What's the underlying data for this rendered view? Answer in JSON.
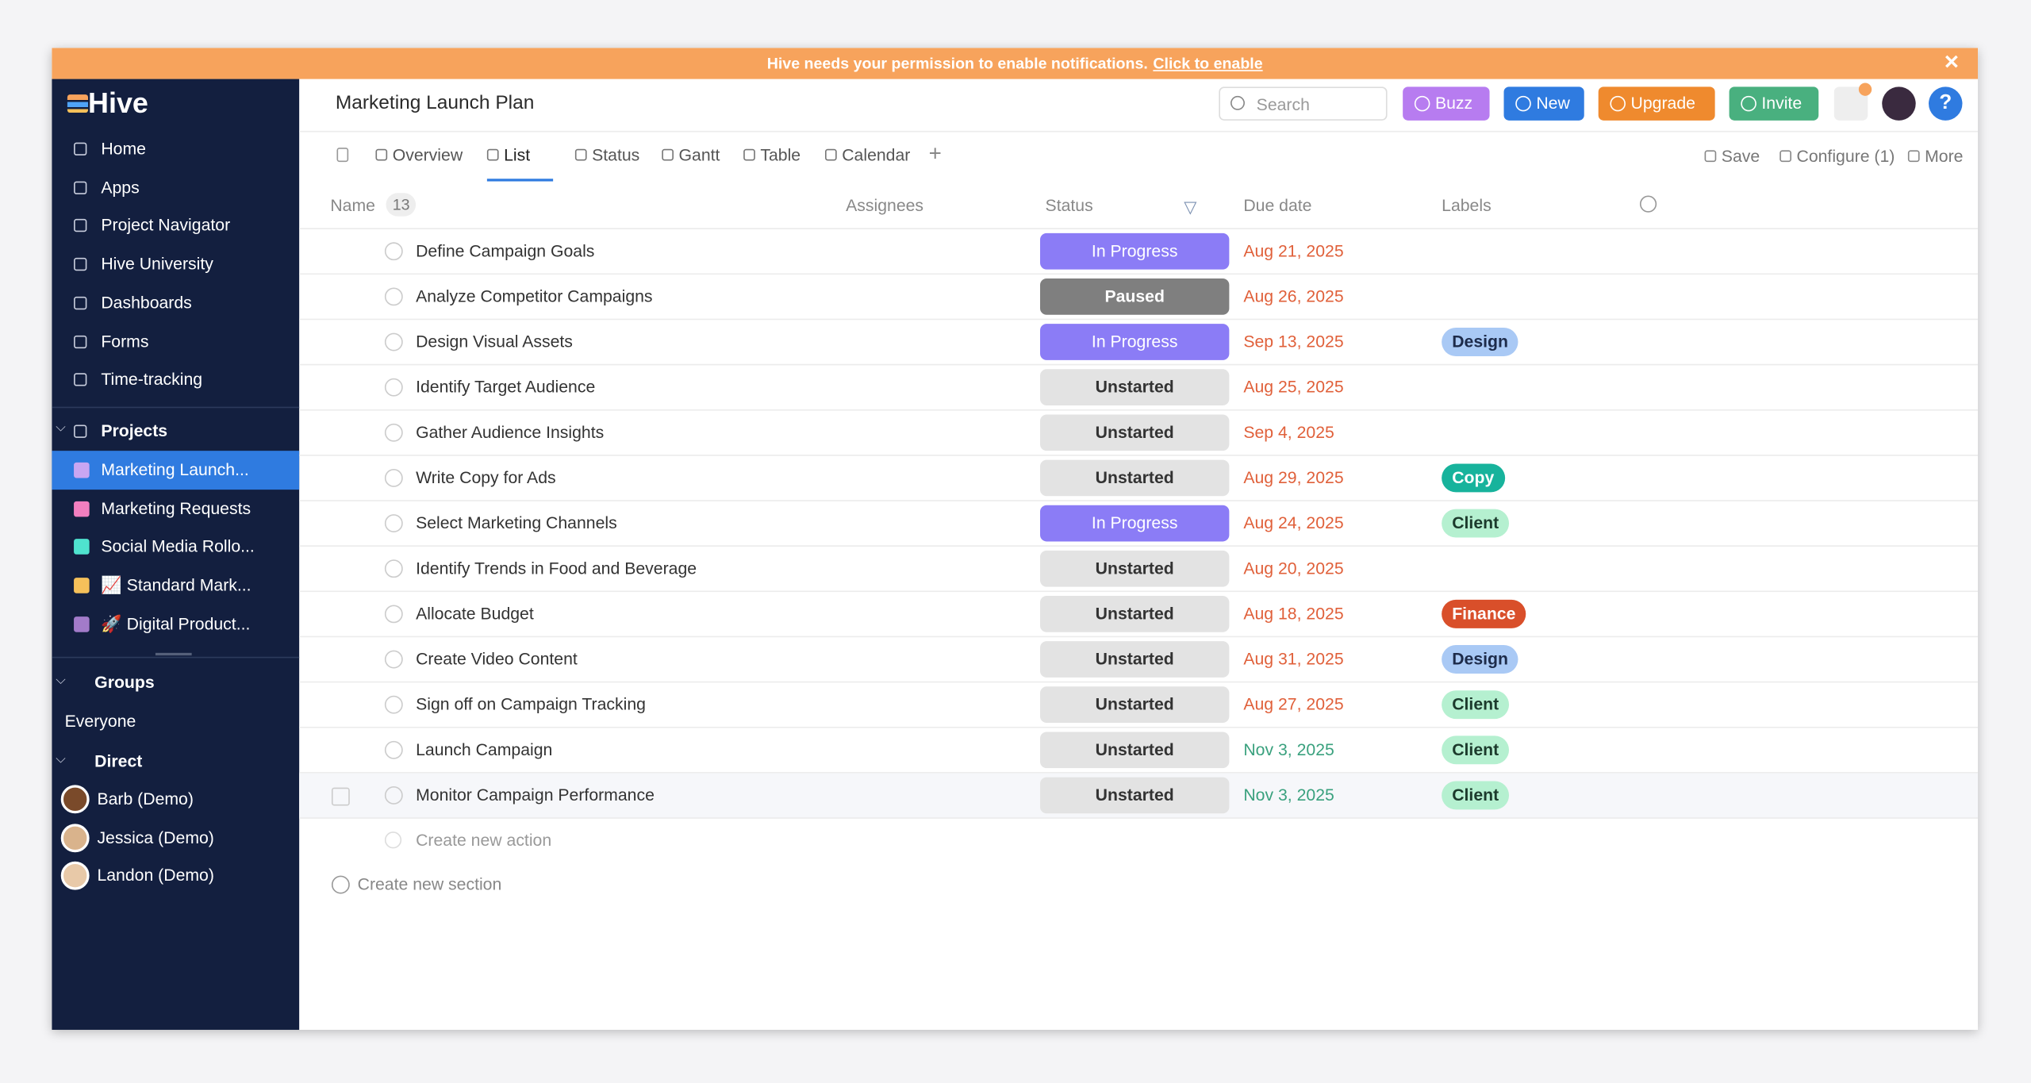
{
  "banner": {
    "text": "Hive needs your permission to enable notifications.",
    "link": "Click to enable"
  },
  "sidebar": {
    "logo": "Hive",
    "nav": [
      "Home",
      "Apps",
      "Project Navigator",
      "Hive University",
      "Dashboards",
      "Forms",
      "Time-tracking"
    ],
    "projects_title": "Projects",
    "projects": [
      {
        "name": "Marketing Launch...",
        "color": "#c9a6f2"
      },
      {
        "name": "Marketing Requests",
        "color": "#f27fc0"
      },
      {
        "name": "Social Media Rollo...",
        "color": "#4fe3cf"
      },
      {
        "name": "📈 Standard Mark...",
        "color": "#f5c05a"
      },
      {
        "name": "🚀 Digital Product...",
        "color": "#a27bc9"
      }
    ],
    "groups_title": "Groups",
    "groups": [
      "Everyone"
    ],
    "direct_title": "Direct",
    "direct": [
      "Barb (Demo)",
      "Jessica (Demo)",
      "Landon (Demo)"
    ]
  },
  "header": {
    "title": "Marketing Launch Plan",
    "search": "Search",
    "buttons": [
      {
        "text": "Buzz",
        "color": "#b77cf0"
      },
      {
        "text": "New",
        "color": "#2f7be0"
      },
      {
        "text": "Upgrade",
        "color": "#ef8a2e"
      },
      {
        "text": "Invite",
        "color": "#49b07f"
      }
    ]
  },
  "tabs": {
    "items": [
      "Overview",
      "List",
      "Status",
      "Gantt",
      "Table",
      "Calendar"
    ],
    "active": "List",
    "actions": [
      "Save",
      "Configure (1)",
      "More"
    ]
  },
  "table": {
    "columns": [
      "Name",
      "Assignees",
      "Status",
      "Due date",
      "Labels"
    ],
    "count": "13",
    "rows": [
      {
        "name": "Define Campaign Goals",
        "status": "In Progress",
        "due": "Aug 21, 2025",
        "label": null
      },
      {
        "name": "Analyze Competitor Campaigns",
        "status": "Paused",
        "due": "Aug 26, 2025",
        "label": null
      },
      {
        "name": "Design Visual Assets",
        "status": "In Progress",
        "due": "Sep 13, 2025",
        "label": "Design"
      },
      {
        "name": "Identify Target Audience",
        "status": "Unstarted",
        "due": "Aug 25, 2025",
        "label": null
      },
      {
        "name": "Gather Audience Insights",
        "status": "Unstarted",
        "due": "Sep 4, 2025",
        "label": null
      },
      {
        "name": "Write Copy for Ads",
        "status": "Unstarted",
        "due": "Aug 29, 2025",
        "label": "Copy"
      },
      {
        "name": "Select Marketing Channels",
        "status": "In Progress",
        "due": "Aug 24, 2025",
        "label": "Client"
      },
      {
        "name": "Identify Trends in Food and Beverage",
        "status": "Unstarted",
        "due": "Aug 20, 2025",
        "label": null
      },
      {
        "name": "Allocate Budget",
        "status": "Unstarted",
        "due": "Aug 18, 2025",
        "label": "Finance"
      },
      {
        "name": "Create Video Content",
        "status": "Unstarted",
        "due": "Aug 31, 2025",
        "label": "Design"
      },
      {
        "name": "Sign off on Campaign Tracking",
        "status": "Unstarted",
        "due": "Aug 27, 2025",
        "label": "Client"
      },
      {
        "name": "Launch Campaign",
        "status": "Unstarted",
        "due": "Nov 3, 2025",
        "label": "Client"
      },
      {
        "name": "Monitor Campaign Performance",
        "status": "Unstarted",
        "due": "Nov 3, 2025",
        "label": "Client"
      }
    ],
    "create_action": "Create new action",
    "create_section": "Create new section"
  }
}
